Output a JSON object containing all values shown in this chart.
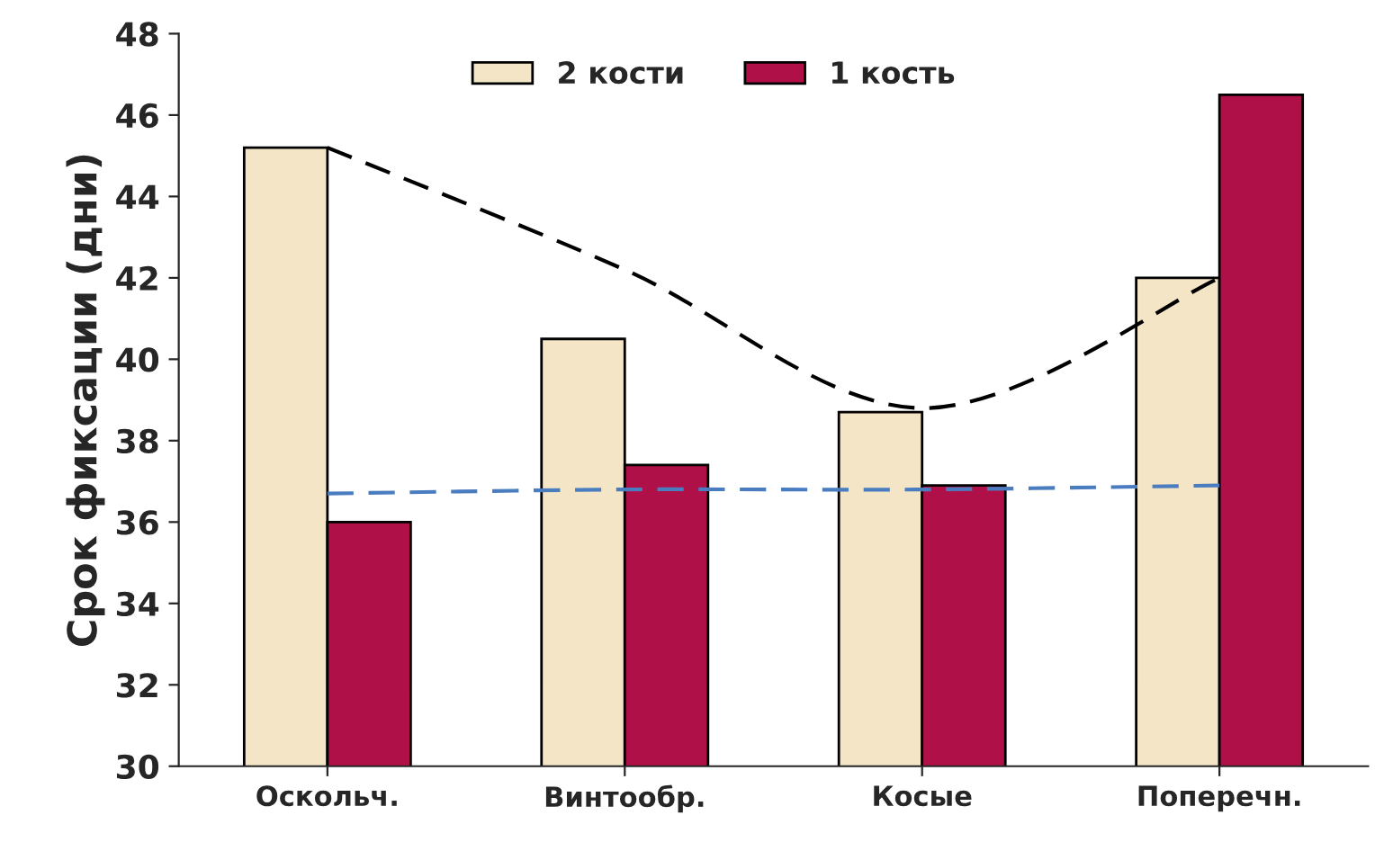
{
  "chart_data": {
    "type": "bar",
    "ylabel": "Срок фиксации (дни)",
    "categories": [
      "Оскольч.",
      "Винтообр.",
      "Косые",
      "Поперечн."
    ],
    "series": [
      {
        "name": "2 кости",
        "color": "#f3e5c6",
        "values": [
          45.2,
          40.5,
          38.7,
          42.0
        ]
      },
      {
        "name": "1 кость",
        "color": "#b01048",
        "values": [
          36.0,
          37.4,
          36.9,
          46.5
        ]
      },
      {
        "type": "line",
        "color": "#000000",
        "line_style": "dashed",
        "values": [
          45.2,
          42.2,
          38.8,
          42.0
        ]
      },
      {
        "type": "line",
        "color": "#4a7cc0",
        "line_style": "dashed",
        "values": [
          36.7,
          36.8,
          36.8,
          36.9
        ]
      }
    ],
    "ylim": [
      30,
      48
    ],
    "yticks": [
      30,
      32,
      34,
      36,
      38,
      40,
      42,
      44,
      46,
      48
    ],
    "grid": false,
    "legend": "top"
  }
}
